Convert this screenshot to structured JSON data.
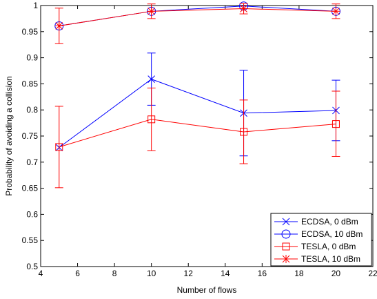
{
  "chart_data": {
    "type": "line",
    "title": "",
    "xlabel": "Number of flows",
    "ylabel": "Probability of avoiding a collision",
    "xlim": [
      4,
      22
    ],
    "ylim": [
      0.5,
      1
    ],
    "xticks": [
      "4",
      "6",
      "8",
      "10",
      "12",
      "14",
      "16",
      "18",
      "20",
      "22"
    ],
    "yticks": [
      "0.5",
      "0.55",
      "0.6",
      "0.65",
      "0.7",
      "0.75",
      "0.8",
      "0.85",
      "0.9",
      "0.95",
      "1"
    ],
    "grid": false,
    "legend_position": "bottom-right",
    "x": [
      5,
      10,
      15,
      20
    ],
    "series": [
      {
        "name": "ECDSA, 0 dBm",
        "color": "#0000ff",
        "marker": "x",
        "values": [
          0.728,
          0.859,
          0.794,
          0.799
        ],
        "err_low": [
          0.728,
          0.809,
          0.712,
          0.741
        ],
        "err_high": [
          0.728,
          0.909,
          0.876,
          0.857
        ]
      },
      {
        "name": "ECDSA, 10 dBm",
        "color": "#0000ff",
        "marker": "circle",
        "values": [
          0.961,
          0.989,
          0.999,
          0.989
        ],
        "err_low": null,
        "err_high": null
      },
      {
        "name": "TESLA, 0 dBm",
        "color": "#ff0000",
        "marker": "square",
        "values": [
          0.729,
          0.782,
          0.758,
          0.773
        ],
        "err_low": [
          0.651,
          0.722,
          0.697,
          0.711
        ],
        "err_high": [
          0.807,
          0.842,
          0.819,
          0.836
        ]
      },
      {
        "name": "TESLA, 10 dBm",
        "color": "#ff0000",
        "marker": "star",
        "values": [
          0.961,
          0.989,
          0.994,
          0.989
        ],
        "err_low": [
          0.927,
          0.975,
          0.984,
          0.975
        ],
        "err_high": [
          0.995,
          1.003,
          1.004,
          1.003
        ]
      }
    ]
  }
}
